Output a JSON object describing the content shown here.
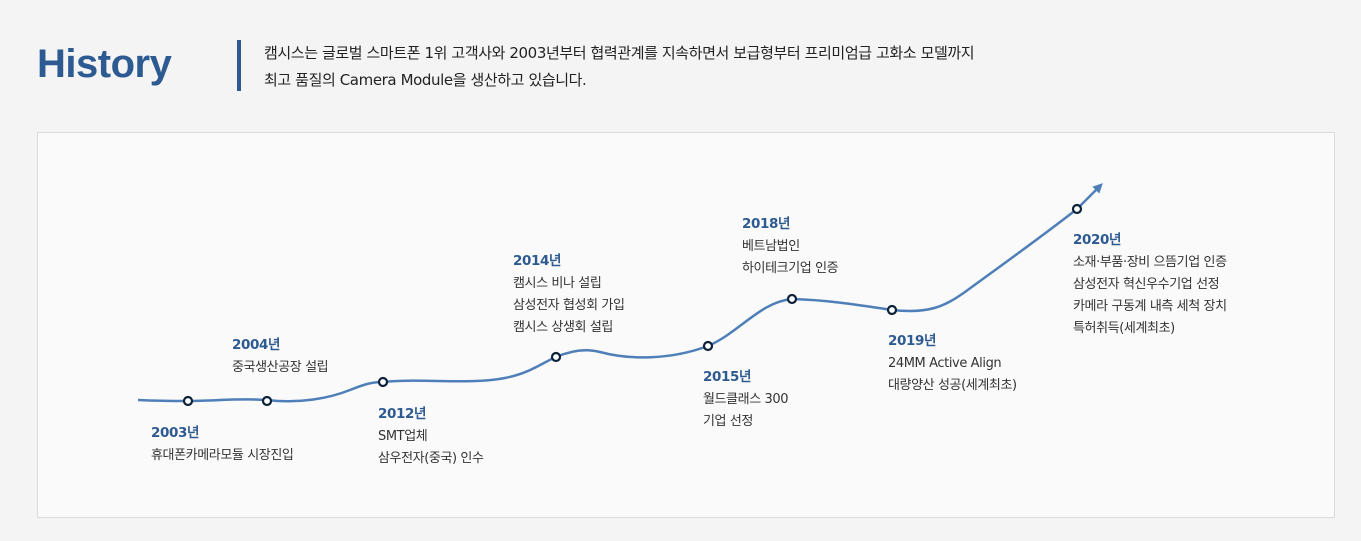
{
  "header": {
    "title": "History",
    "intro_line1": "캠시스는 글로벌 스마트폰 1위 고객사와 2003년부터 협력관계를 지속하면서 보급형부터 프리미엄급 고화소 모델까지",
    "intro_line2": "최고 품질의 Camera Module을 생산하고 있습니다."
  },
  "colors": {
    "accent": "#2d5a91",
    "line": "#4f7fb8",
    "node": "#0d2238"
  },
  "timeline": [
    {
      "year": "2003년",
      "lines": [
        "휴대폰카메라모듈 시장진입"
      ]
    },
    {
      "year": "2004년",
      "lines": [
        "중국생산공장 설립"
      ]
    },
    {
      "year": "2012년",
      "lines": [
        "SMT업체",
        "삼우전자(중국) 인수"
      ]
    },
    {
      "year": "2014년",
      "lines": [
        "캠시스 비나 설립",
        "삼성전자 협성회 가입",
        "캠시스 상생회 설립"
      ]
    },
    {
      "year": "2015년",
      "lines": [
        "월드클래스 300",
        "기업 선정"
      ]
    },
    {
      "year": "2018년",
      "lines": [
        "베트남법인",
        "하이테크기업 인증"
      ]
    },
    {
      "year": "2019년",
      "lines": [
        "24MM  Active Align",
        "대량양산 성공(세계최초)"
      ]
    },
    {
      "year": "2020년",
      "lines": [
        "소재·부품·장비 으뜸기업 인증",
        "삼성전자 혁신우수기업 선정",
        "카메라 구동계 내측 세척 장치",
        "특허취득(세계최초)"
      ]
    }
  ]
}
